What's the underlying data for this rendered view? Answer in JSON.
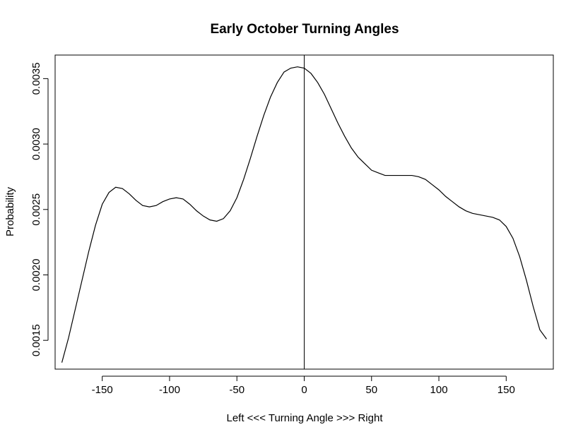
{
  "chart_data": {
    "type": "line",
    "title": "Early October Turning Angles",
    "xlabel": "Left <<< Turning Angle >>> Right",
    "ylabel": "Probability",
    "xlim": [
      -185,
      185
    ],
    "ylim": [
      0.00128,
      0.00368
    ],
    "x_ticks": [
      -150,
      -100,
      -50,
      0,
      50,
      100,
      150
    ],
    "x_tick_labels": [
      "-150",
      "-100",
      "-50",
      "0",
      "50",
      "100",
      "150"
    ],
    "y_ticks": [
      0.0015,
      0.002,
      0.0025,
      0.003,
      0.0035
    ],
    "y_tick_labels": [
      "0.0015",
      "0.0020",
      "0.0025",
      "0.0030",
      "0.0035"
    ],
    "reference_line_x": 0,
    "grid": false,
    "series": [
      {
        "x": [
          -180,
          -175,
          -170,
          -165,
          -160,
          -155,
          -150,
          -145,
          -140,
          -135,
          -130,
          -125,
          -120,
          -115,
          -110,
          -105,
          -100,
          -95,
          -90,
          -85,
          -80,
          -75,
          -70,
          -65,
          -60,
          -55,
          -50,
          -45,
          -40,
          -35,
          -30,
          -25,
          -20,
          -15,
          -10,
          -5,
          0,
          5,
          10,
          15,
          20,
          25,
          30,
          35,
          40,
          45,
          50,
          55,
          60,
          65,
          70,
          75,
          80,
          85,
          90,
          95,
          100,
          105,
          110,
          115,
          120,
          125,
          130,
          135,
          140,
          145,
          150,
          155,
          160,
          165,
          170,
          175,
          180
        ],
        "y": [
          0.00133,
          0.00152,
          0.00174,
          0.00196,
          0.00218,
          0.00238,
          0.00254,
          0.00263,
          0.00267,
          0.00266,
          0.00262,
          0.00257,
          0.00253,
          0.00252,
          0.00253,
          0.00256,
          0.00258,
          0.00259,
          0.00258,
          0.00254,
          0.00249,
          0.00245,
          0.00242,
          0.00241,
          0.00243,
          0.00249,
          0.00259,
          0.00273,
          0.00289,
          0.00306,
          0.00322,
          0.00336,
          0.00347,
          0.00355,
          0.00358,
          0.00359,
          0.00358,
          0.00354,
          0.00347,
          0.00338,
          0.00327,
          0.00316,
          0.00306,
          0.00297,
          0.0029,
          0.00285,
          0.0028,
          0.00278,
          0.00276,
          0.00276,
          0.00276,
          0.00276,
          0.00276,
          0.00275,
          0.00273,
          0.00269,
          0.00265,
          0.0026,
          0.00256,
          0.00252,
          0.00249,
          0.00247,
          0.00246,
          0.00245,
          0.00244,
          0.00242,
          0.00237,
          0.00228,
          0.00214,
          0.00196,
          0.00176,
          0.00158,
          0.00151
        ]
      }
    ]
  }
}
